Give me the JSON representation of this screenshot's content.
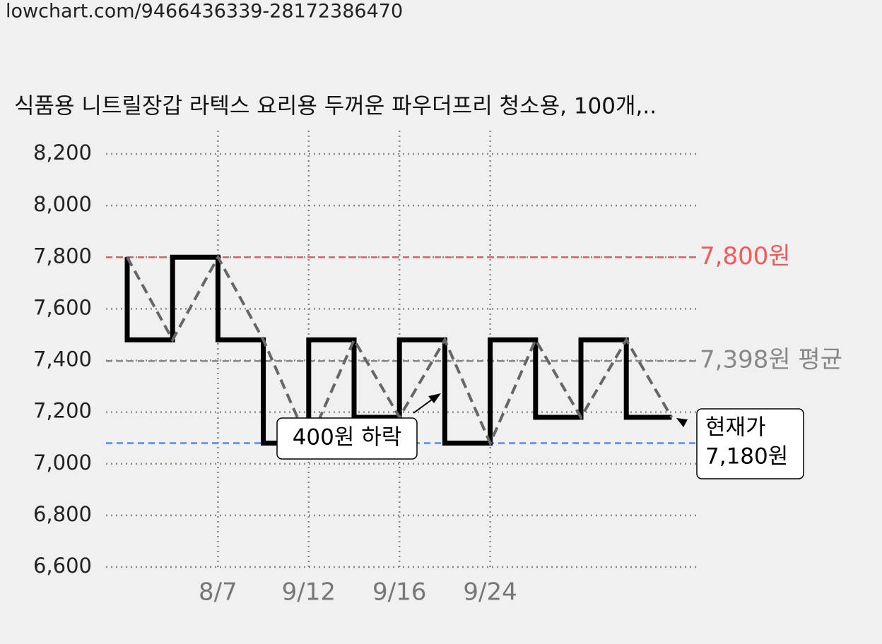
{
  "url": "lowchart.com/9466436339-28172386470",
  "chart_data": {
    "type": "line",
    "step": true,
    "trend_dashed": true,
    "title": "식품용 니트릴장갑 라텍스 요리용 두꺼운 파우더프리 청소용, 100개,..",
    "x": [
      null,
      null,
      "8/7",
      null,
      "9/12",
      null,
      "9/16",
      null,
      "9/24",
      null,
      null,
      null,
      null
    ],
    "series": [
      {
        "color": "#000000",
        "values": [
          7800,
          7480,
          7800,
          7480,
          7080,
          7480,
          7180,
          7480,
          7080,
          7480,
          7180,
          7480,
          7180
        ]
      }
    ],
    "trend_color": "#666666",
    "ylim": [
      6600,
      8200
    ],
    "yticks": [
      {
        "value": 6600,
        "label": "6,600"
      },
      {
        "value": 6800,
        "label": "6,800"
      },
      {
        "value": 7000,
        "label": "7,000"
      },
      {
        "value": 7200,
        "label": "7,200"
      },
      {
        "value": 7400,
        "label": "7,400"
      },
      {
        "value": 7600,
        "label": "7,600"
      },
      {
        "value": 7800,
        "label": "7,800"
      },
      {
        "value": 8000,
        "label": "8,000"
      },
      {
        "value": 8200,
        "label": "8,200"
      }
    ],
    "grid": true,
    "reference_lines": [
      {
        "value": 7800,
        "label": "7,800원",
        "color": "#f05a5a"
      },
      {
        "value": 7398,
        "label": "7,398원 평균",
        "color": "#888888"
      },
      {
        "value": 7080,
        "color": "#5b86e5"
      }
    ],
    "drop_annotation": "400원 하락",
    "current": {
      "label": "현재가",
      "value": 7180,
      "value_label": "7,180원"
    }
  }
}
